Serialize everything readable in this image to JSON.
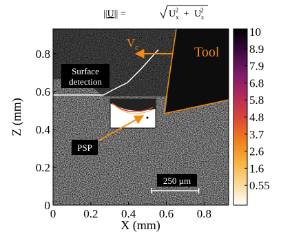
{
  "chart_data": {
    "type": "heatmap",
    "title_parts": {
      "norm_open": "||",
      "var": "U",
      "norm_close": "|| = ",
      "term1_base": "U",
      "term1_sub": "x",
      "term1_sup": "2",
      "plus": "+",
      "term2_base": "U",
      "term2_sub": "z",
      "term2_sup": "2"
    },
    "xlabel": "X (mm)",
    "ylabel": "Z (mm)",
    "xlim": [
      0,
      0.93
    ],
    "ylim": [
      0,
      0.93
    ],
    "xticks": [
      0,
      0.2,
      0.4,
      0.6,
      0.8
    ],
    "yticks": [
      0,
      0.2,
      0.4,
      0.6,
      0.8
    ],
    "xtick_labels": [
      "0",
      "0.2",
      "0.4",
      "0.6",
      "0.8"
    ],
    "ytick_labels": [
      "0",
      "0.2",
      "0.4",
      "0.6",
      "0.8"
    ],
    "colorbar": {
      "labels": [
        "10",
        "8.9",
        "7.9",
        "6.8",
        "5.8",
        "4.8",
        "3.7",
        "2.6",
        "1.6",
        "0.55"
      ],
      "colors": [
        "#000000",
        "#3a0a3f",
        "#7a1a6a",
        "#b02a5a",
        "#d8443c",
        "#f07a1c",
        "#f8b03a",
        "#fbd890",
        "#ffffff"
      ]
    },
    "annotations": {
      "vc_label_base": "V",
      "vc_label_sub": "c",
      "tool_label": "Tool",
      "surface_label_line1": "Surface",
      "surface_label_line2": "detection",
      "psp_label": "PSP",
      "scalebar_label": "250 µm",
      "scalebar_mm": 0.25
    },
    "colors": {
      "accent": "#f08a12",
      "image_background": "#1a1a1a",
      "tool_region": "#0d0d0d"
    }
  }
}
